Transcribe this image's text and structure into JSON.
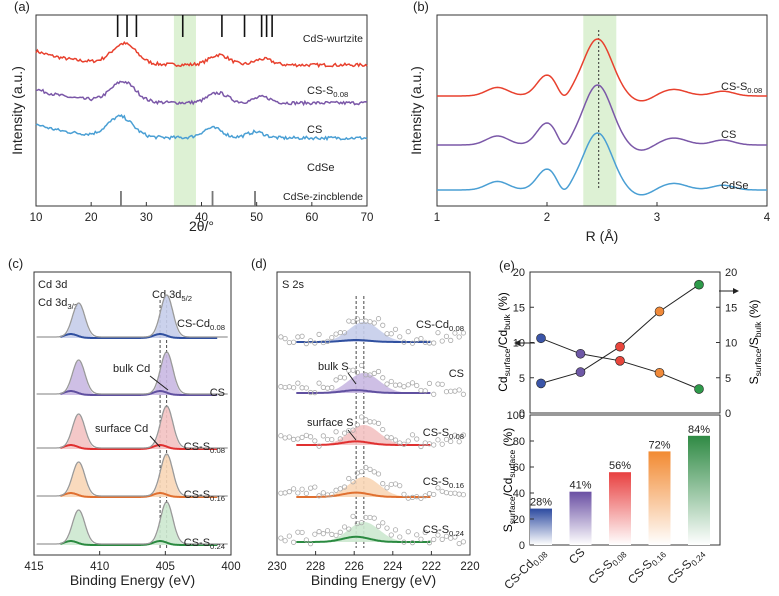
{
  "chart_data": [
    {
      "panel": "(a)",
      "type": "line",
      "xlabel": "2θ/°",
      "ylabel": "Intensity (a.u.)",
      "xlim": [
        10,
        70
      ],
      "xticks": [
        10,
        20,
        30,
        40,
        50,
        60,
        70
      ],
      "highlight_x": [
        35,
        39
      ],
      "reference_top": {
        "label": "CdS-wurtzite",
        "x": [
          24.8,
          26.5,
          28.2,
          36.6,
          43.7,
          47.8,
          50.9,
          51.8,
          52.8
        ]
      },
      "reference_bottom": {
        "label": "CdSe-zincblende",
        "x": [
          25.4,
          42.0,
          49.7
        ]
      },
      "series": [
        {
          "name": "CS-S0.08",
          "color": "#e8412e",
          "peaks_x": [
            26.0,
            43.2,
            51.2
          ]
        },
        {
          "name": "CS",
          "color": "#7b58a8",
          "peaks_x": [
            25.8,
            43.0,
            51.0
          ]
        },
        {
          "name": "CdSe",
          "color": "#4a9fd4",
          "peaks_x": [
            25.3,
            42.0,
            49.8
          ]
        }
      ]
    },
    {
      "panel": "(b)",
      "type": "line",
      "xlabel": "R (Å)",
      "ylabel": "Intensity (a.u.)",
      "xlim": [
        1,
        4
      ],
      "xticks": [
        1,
        2,
        3,
        4
      ],
      "highlight_x": [
        2.33,
        2.63
      ],
      "dashed_x": 2.47,
      "series": [
        {
          "name": "CS-S0.08",
          "color": "#e8412e"
        },
        {
          "name": "CS",
          "color": "#7b58a8"
        },
        {
          "name": "CdSe",
          "color": "#4a9fd4"
        }
      ]
    },
    {
      "panel": "(c)",
      "type": "line",
      "title": "Cd 3d",
      "xlabel": "Binding Energy (eV)",
      "xlim": [
        415,
        400
      ],
      "xticks": [
        415,
        410,
        405,
        400
      ],
      "peak_labels": [
        "Cd 3d3/2",
        "Cd 3d5/2"
      ],
      "annotations": [
        "bulk Cd",
        "surface Cd"
      ],
      "dashed_x": [
        405.4,
        404.9
      ],
      "series": [
        {
          "name": "CS-Cd0.08",
          "color": "#c5cdea"
        },
        {
          "name": "CS",
          "color": "#c9b8e2"
        },
        {
          "name": "CS-S0.08",
          "color": "#f3c2c2"
        },
        {
          "name": "CS-S0.16",
          "color": "#f8d6b6"
        },
        {
          "name": "CS-S0.24",
          "color": "#cce8cf"
        }
      ]
    },
    {
      "panel": "(d)",
      "type": "scatter",
      "title": "S 2s",
      "xlabel": "Binding Energy (eV)",
      "xlim": [
        230,
        220
      ],
      "xticks": [
        230,
        228,
        226,
        224,
        222,
        220
      ],
      "annotations": [
        "bulk S",
        "surface S"
      ],
      "dashed_x": [
        225.9,
        225.5
      ],
      "series": [
        {
          "name": "CS-Cd0.08",
          "color": "#c5cdea"
        },
        {
          "name": "CS",
          "color": "#c9b8e2"
        },
        {
          "name": "CS-S0.08",
          "color": "#f3c2c2"
        },
        {
          "name": "CS-S0.16",
          "color": "#f8d6b6"
        },
        {
          "name": "CS-S0.24",
          "color": "#cce8cf"
        }
      ]
    },
    {
      "panel": "(e)",
      "type": "line",
      "categories": [
        "CS-Cd0.08",
        "CS",
        "CS-S0.08",
        "CS-S0.16",
        "CS-S0.24"
      ],
      "left_ylabel": "Cdsurface/Cdbulk (%)",
      "right_ylabel": "Ssurface/Sbulk (%)",
      "ylim": [
        0,
        20
      ],
      "yticks": [
        0,
        5,
        10,
        15,
        20
      ],
      "series": [
        {
          "name": "Cdsurface/Cdbulk",
          "axis": "left",
          "values": [
            10.6,
            8.4,
            7.4,
            5.7,
            3.4
          ]
        },
        {
          "name": "Ssurface/Sbulk",
          "axis": "right",
          "values": [
            4.2,
            5.8,
            9.4,
            14.4,
            18.2
          ]
        }
      ],
      "point_colors": [
        "#3b55a8",
        "#6e58a6",
        "#e8463c",
        "#f08a3a",
        "#2e9a4a"
      ]
    },
    {
      "panel": "(e)",
      "type": "bar",
      "categories": [
        "CS-Cd0.08",
        "CS",
        "CS-S0.08",
        "CS-S0.16",
        "CS-S0.24"
      ],
      "ylabel": "Ssurface/Cdsurface (%)",
      "ylim": [
        0,
        100
      ],
      "yticks": [
        0,
        20,
        40,
        60,
        80,
        100
      ],
      "values": [
        28,
        41,
        56,
        72,
        84
      ],
      "data_labels": [
        "28%",
        "41%",
        "56%",
        "72%",
        "84%"
      ],
      "colors": [
        "#2c4aa0",
        "#6a4fa3",
        "#e84040",
        "#f28a32",
        "#2f8a44"
      ]
    }
  ]
}
